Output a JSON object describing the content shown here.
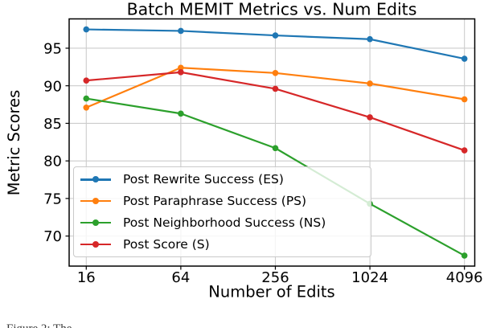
{
  "figure": {
    "caption_fragment": "Figure 2: The"
  },
  "chart_data": {
    "type": "line",
    "title": "Batch MEMIT Metrics vs. Num Edits",
    "xlabel": "Number of Edits",
    "ylabel": "Metric Scores",
    "x_scale": "log2-equally-spaced-ticks",
    "categories": [
      "16",
      "64",
      "256",
      "1024",
      "4096"
    ],
    "yticks": [
      70,
      75,
      80,
      85,
      90,
      95
    ],
    "ylim": [
      66.0,
      98.9
    ],
    "grid": true,
    "legend_position": "lower-left-inside",
    "series": [
      {
        "name": "Post Rewrite Success (ES)",
        "color": "#1f77b4",
        "marker": "circle",
        "values": [
          97.5,
          97.3,
          96.7,
          96.2,
          93.6
        ]
      },
      {
        "name": "Post Paraphrase Success (PS)",
        "color": "#ff7f0e",
        "marker": "circle",
        "values": [
          87.1,
          92.4,
          91.7,
          90.3,
          88.2
        ]
      },
      {
        "name": "Post Neighborhood Success (NS)",
        "color": "#2ca02c",
        "marker": "circle",
        "values": [
          88.3,
          86.3,
          81.7,
          74.3,
          67.4
        ]
      },
      {
        "name": "Post Score (S)",
        "color": "#d62728",
        "marker": "circle",
        "values": [
          90.7,
          91.8,
          89.6,
          85.8,
          81.4
        ]
      }
    ]
  }
}
